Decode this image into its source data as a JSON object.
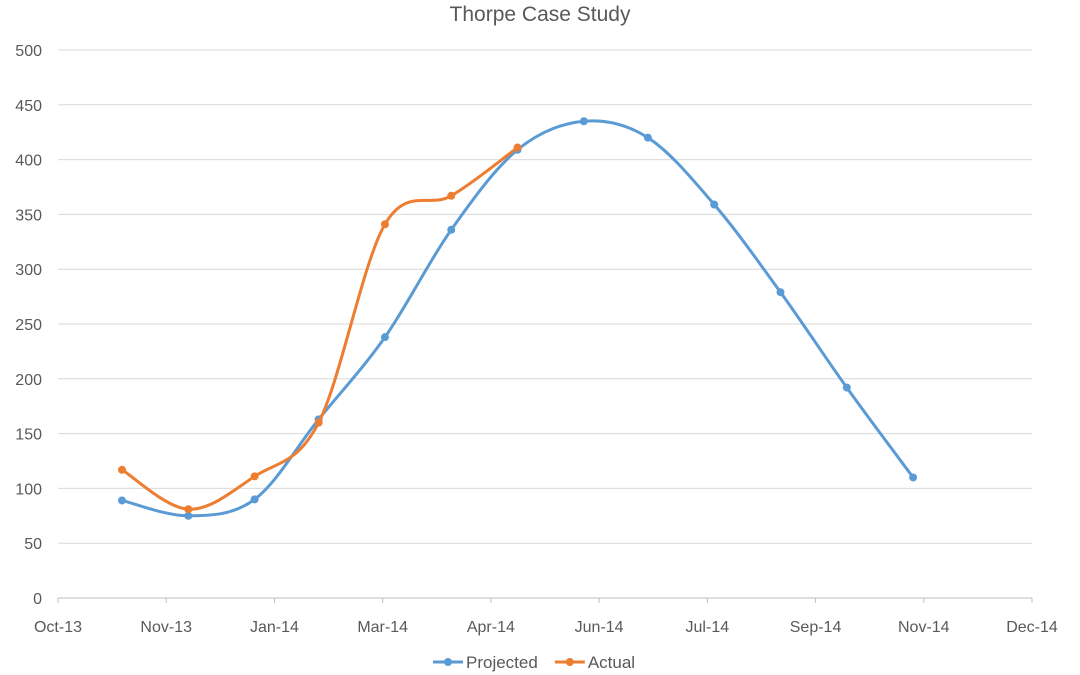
{
  "chart_data": {
    "type": "line",
    "title": "Thorpe Case Study",
    "xlabel": "",
    "ylabel": "",
    "x_unit": "days since Oct-13",
    "xlim": [
      0,
      426
    ],
    "ylim": [
      0,
      500
    ],
    "y_ticks": [
      0,
      50,
      100,
      150,
      200,
      250,
      300,
      350,
      400,
      450,
      500
    ],
    "x_tick_labels": [
      "Oct-13",
      "Nov-13",
      "Jan-14",
      "Mar-14",
      "Apr-14",
      "Jun-14",
      "Jul-14",
      "Sep-14",
      "Nov-14",
      "Dec-14"
    ],
    "grid": true,
    "smooth": true,
    "legend_position": "bottom",
    "series": [
      {
        "name": "Projected",
        "color": "#5B9BD5",
        "x": [
          28,
          57,
          86,
          114,
          143,
          172,
          201,
          230,
          258,
          287,
          316,
          345,
          374
        ],
        "values": [
          89,
          75,
          90,
          163,
          238,
          336,
          409,
          435,
          420,
          359,
          279,
          192,
          110
        ]
      },
      {
        "name": "Actual",
        "color": "#ED7D31",
        "x": [
          28,
          57,
          86,
          114,
          143,
          172,
          201
        ],
        "values": [
          117,
          81,
          111,
          160,
          341,
          367,
          411
        ]
      }
    ]
  }
}
